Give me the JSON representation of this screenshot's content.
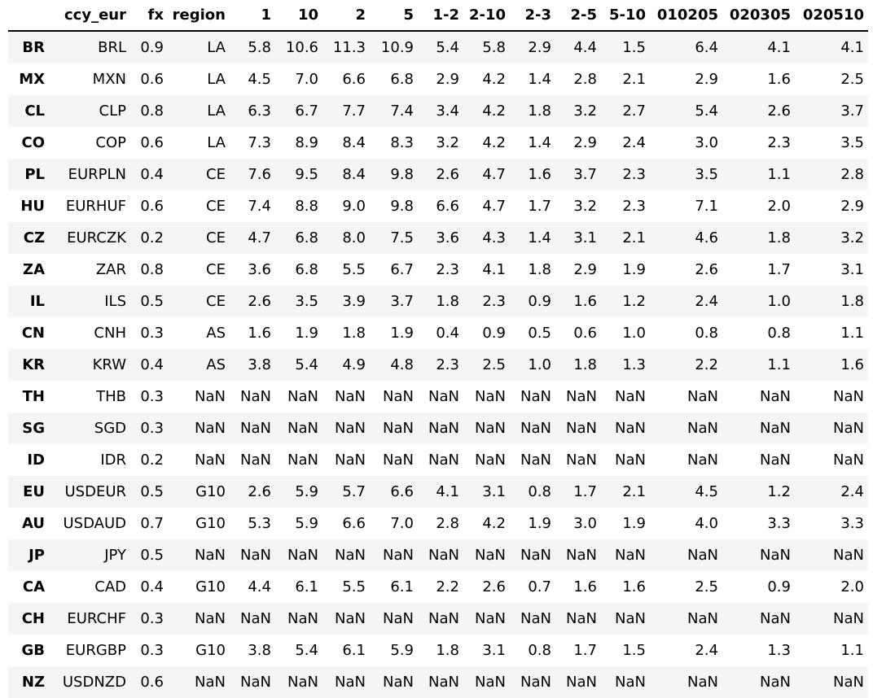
{
  "table": {
    "index_header": "",
    "columns": [
      "ccy_eur",
      "fx",
      "region",
      "1",
      "10",
      "2",
      "5",
      "1-2",
      "2-10",
      "2-3",
      "2-5",
      "5-10",
      "010205",
      "020305",
      "020510"
    ],
    "rows": [
      {
        "index": "BR",
        "cells": [
          "BRL",
          "0.9",
          "LA",
          "5.8",
          "10.6",
          "11.3",
          "10.9",
          "5.4",
          "5.8",
          "2.9",
          "4.4",
          "1.5",
          "6.4",
          "4.1",
          "4.1"
        ]
      },
      {
        "index": "MX",
        "cells": [
          "MXN",
          "0.6",
          "LA",
          "4.5",
          "7.0",
          "6.6",
          "6.8",
          "2.9",
          "4.2",
          "1.4",
          "2.8",
          "2.1",
          "2.9",
          "1.6",
          "2.5"
        ]
      },
      {
        "index": "CL",
        "cells": [
          "CLP",
          "0.8",
          "LA",
          "6.3",
          "6.7",
          "7.7",
          "7.4",
          "3.4",
          "4.2",
          "1.8",
          "3.2",
          "2.7",
          "5.4",
          "2.6",
          "3.7"
        ]
      },
      {
        "index": "CO",
        "cells": [
          "COP",
          "0.6",
          "LA",
          "7.3",
          "8.9",
          "8.4",
          "8.3",
          "3.2",
          "4.2",
          "1.4",
          "2.9",
          "2.4",
          "3.0",
          "2.3",
          "3.5"
        ]
      },
      {
        "index": "PL",
        "cells": [
          "EURPLN",
          "0.4",
          "CE",
          "7.6",
          "9.5",
          "8.4",
          "9.8",
          "2.6",
          "4.7",
          "1.6",
          "3.7",
          "2.3",
          "3.5",
          "1.1",
          "2.8"
        ]
      },
      {
        "index": "HU",
        "cells": [
          "EURHUF",
          "0.6",
          "CE",
          "7.4",
          "8.8",
          "9.0",
          "9.8",
          "6.6",
          "4.7",
          "1.7",
          "3.2",
          "2.3",
          "7.1",
          "2.0",
          "2.9"
        ]
      },
      {
        "index": "CZ",
        "cells": [
          "EURCZK",
          "0.2",
          "CE",
          "4.7",
          "6.8",
          "8.0",
          "7.5",
          "3.6",
          "4.3",
          "1.4",
          "3.1",
          "2.1",
          "4.6",
          "1.8",
          "3.2"
        ]
      },
      {
        "index": "ZA",
        "cells": [
          "ZAR",
          "0.8",
          "CE",
          "3.6",
          "6.8",
          "5.5",
          "6.7",
          "2.3",
          "4.1",
          "1.8",
          "2.9",
          "1.9",
          "2.6",
          "1.7",
          "3.1"
        ]
      },
      {
        "index": "IL",
        "cells": [
          "ILS",
          "0.5",
          "CE",
          "2.6",
          "3.5",
          "3.9",
          "3.7",
          "1.8",
          "2.3",
          "0.9",
          "1.6",
          "1.2",
          "2.4",
          "1.0",
          "1.8"
        ]
      },
      {
        "index": "CN",
        "cells": [
          "CNH",
          "0.3",
          "AS",
          "1.6",
          "1.9",
          "1.8",
          "1.9",
          "0.4",
          "0.9",
          "0.5",
          "0.6",
          "1.0",
          "0.8",
          "0.8",
          "1.1"
        ]
      },
      {
        "index": "KR",
        "cells": [
          "KRW",
          "0.4",
          "AS",
          "3.8",
          "5.4",
          "4.9",
          "4.8",
          "2.3",
          "2.5",
          "1.0",
          "1.8",
          "1.3",
          "2.2",
          "1.1",
          "1.6"
        ]
      },
      {
        "index": "TH",
        "cells": [
          "THB",
          "0.3",
          "NaN",
          "NaN",
          "NaN",
          "NaN",
          "NaN",
          "NaN",
          "NaN",
          "NaN",
          "NaN",
          "NaN",
          "NaN",
          "NaN",
          "NaN"
        ]
      },
      {
        "index": "SG",
        "cells": [
          "SGD",
          "0.3",
          "NaN",
          "NaN",
          "NaN",
          "NaN",
          "NaN",
          "NaN",
          "NaN",
          "NaN",
          "NaN",
          "NaN",
          "NaN",
          "NaN",
          "NaN"
        ]
      },
      {
        "index": "ID",
        "cells": [
          "IDR",
          "0.2",
          "NaN",
          "NaN",
          "NaN",
          "NaN",
          "NaN",
          "NaN",
          "NaN",
          "NaN",
          "NaN",
          "NaN",
          "NaN",
          "NaN",
          "NaN"
        ]
      },
      {
        "index": "EU",
        "cells": [
          "USDEUR",
          "0.5",
          "G10",
          "2.6",
          "5.9",
          "5.7",
          "6.6",
          "4.1",
          "3.1",
          "0.8",
          "1.7",
          "2.1",
          "4.5",
          "1.2",
          "2.4"
        ]
      },
      {
        "index": "AU",
        "cells": [
          "USDAUD",
          "0.7",
          "G10",
          "5.3",
          "5.9",
          "6.6",
          "7.0",
          "2.8",
          "4.2",
          "1.9",
          "3.0",
          "1.9",
          "4.0",
          "3.3",
          "3.3"
        ]
      },
      {
        "index": "JP",
        "cells": [
          "JPY",
          "0.5",
          "NaN",
          "NaN",
          "NaN",
          "NaN",
          "NaN",
          "NaN",
          "NaN",
          "NaN",
          "NaN",
          "NaN",
          "NaN",
          "NaN",
          "NaN"
        ]
      },
      {
        "index": "CA",
        "cells": [
          "CAD",
          "0.4",
          "G10",
          "4.4",
          "6.1",
          "5.5",
          "6.1",
          "2.2",
          "2.6",
          "0.7",
          "1.6",
          "1.6",
          "2.5",
          "0.9",
          "2.0"
        ]
      },
      {
        "index": "CH",
        "cells": [
          "EURCHF",
          "0.3",
          "NaN",
          "NaN",
          "NaN",
          "NaN",
          "NaN",
          "NaN",
          "NaN",
          "NaN",
          "NaN",
          "NaN",
          "NaN",
          "NaN",
          "NaN"
        ]
      },
      {
        "index": "GB",
        "cells": [
          "EURGBP",
          "0.3",
          "G10",
          "3.8",
          "5.4",
          "6.1",
          "5.9",
          "1.8",
          "3.1",
          "0.8",
          "1.7",
          "1.5",
          "2.4",
          "1.3",
          "1.1"
        ]
      },
      {
        "index": "NZ",
        "cells": [
          "USDNZD",
          "0.6",
          "NaN",
          "NaN",
          "NaN",
          "NaN",
          "NaN",
          "NaN",
          "NaN",
          "NaN",
          "NaN",
          "NaN",
          "NaN",
          "NaN",
          "NaN"
        ]
      }
    ]
  },
  "colors": {
    "stripe": "#f5f5f5",
    "background": "#ffffff",
    "text": "#000000",
    "rule": "#000000"
  }
}
